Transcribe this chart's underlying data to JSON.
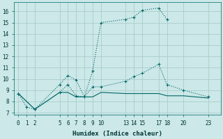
{
  "background_color": "#cce8e8",
  "grid_color": "#aacccc",
  "line_color": "#006666",
  "xlabel": "Humidex (Indice chaleur)",
  "xlim": [
    -0.5,
    24.5
  ],
  "ylim": [
    6.8,
    16.8
  ],
  "xticks": [
    0,
    1,
    2,
    5,
    6,
    7,
    8,
    9,
    10,
    13,
    14,
    15,
    17,
    18,
    20,
    23
  ],
  "yticks": [
    7,
    8,
    9,
    10,
    11,
    12,
    13,
    14,
    15,
    16
  ],
  "line1_x": [
    0,
    1,
    2,
    5,
    6,
    7,
    8,
    9,
    10,
    13,
    14,
    15,
    17,
    18
  ],
  "line1_y": [
    8.7,
    7.5,
    7.3,
    9.5,
    10.3,
    9.9,
    8.4,
    10.7,
    15.0,
    15.3,
    15.5,
    16.1,
    16.3,
    15.3
  ],
  "line2_x": [
    0,
    2,
    5,
    6,
    7,
    8,
    9,
    10,
    13,
    14,
    15,
    17,
    18,
    20,
    23
  ],
  "line2_y": [
    8.7,
    7.3,
    8.8,
    9.5,
    8.5,
    8.4,
    9.3,
    9.3,
    9.8,
    10.2,
    10.5,
    11.3,
    9.5,
    9.0,
    8.4
  ],
  "line3_x": [
    0,
    2,
    5,
    6,
    7,
    8,
    9,
    10,
    13,
    14,
    15,
    17,
    18,
    20,
    23
  ],
  "line3_y": [
    8.7,
    7.3,
    8.8,
    8.8,
    8.4,
    8.4,
    8.4,
    8.8,
    8.7,
    8.7,
    8.7,
    8.7,
    8.5,
    8.5,
    8.3
  ]
}
